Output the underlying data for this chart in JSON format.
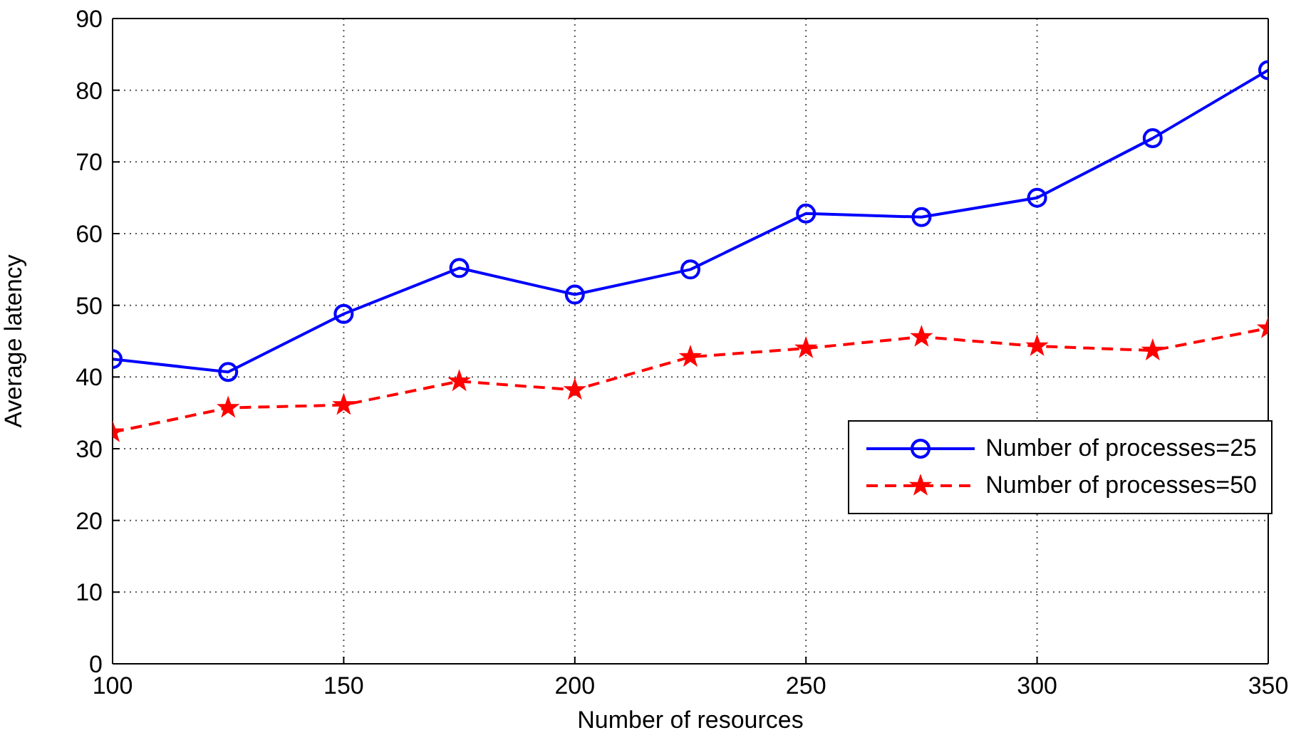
{
  "chart_data": {
    "type": "line",
    "xlabel": "Number of resources",
    "ylabel": "Average latency",
    "x": [
      100,
      125,
      150,
      175,
      200,
      225,
      250,
      275,
      300,
      325,
      350
    ],
    "series": [
      {
        "name": "Number of processes=25",
        "color": "#0000ff",
        "marker": "circle",
        "line_style": "solid",
        "values": [
          42.5,
          40.7,
          48.8,
          55.2,
          51.5,
          55,
          62.8,
          62.3,
          65,
          73.3,
          82.8
        ]
      },
      {
        "name": "Number of processes=50",
        "color": "#ff0000",
        "marker": "star",
        "line_style": "dashed",
        "values": [
          32.3,
          35.7,
          36.1,
          39.4,
          38.2,
          42.8,
          44,
          45.6,
          44.3,
          43.7,
          46.8
        ]
      }
    ],
    "xlim": [
      100,
      350
    ],
    "xticks": [
      100,
      150,
      200,
      250,
      300,
      350
    ],
    "ylim": [
      0,
      90
    ],
    "yticks": [
      0,
      10,
      20,
      30,
      40,
      50,
      60,
      70,
      80,
      90
    ],
    "grid": true,
    "legend": "right"
  }
}
